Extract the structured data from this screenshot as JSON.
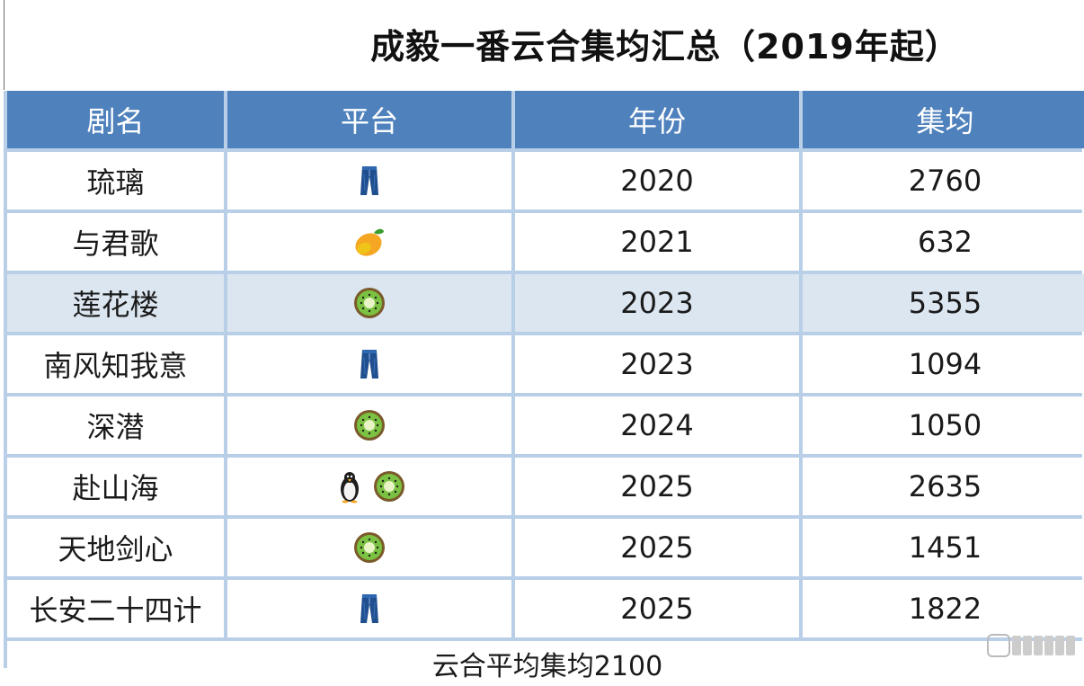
{
  "title": "成毅一番云合集均汇总（2019年起）",
  "table": {
    "headers": [
      "剧名",
      "平台",
      "年份",
      "集均"
    ],
    "rows": [
      {
        "name": "琉璃",
        "platforms": [
          "jeans"
        ],
        "year": "2020",
        "avg": "2760"
      },
      {
        "name": "与君歌",
        "platforms": [
          "mango"
        ],
        "year": "2021",
        "avg": "632"
      },
      {
        "name": "莲花楼",
        "platforms": [
          "kiwi"
        ],
        "year": "2023",
        "avg": "5355",
        "highlight": true
      },
      {
        "name": "南风知我意",
        "platforms": [
          "jeans"
        ],
        "year": "2023",
        "avg": "1094"
      },
      {
        "name": "深潜",
        "platforms": [
          "kiwi"
        ],
        "year": "2024",
        "avg": "1050"
      },
      {
        "name": "赴山海",
        "platforms": [
          "penguin",
          "kiwi"
        ],
        "year": "2025",
        "avg": "2635"
      },
      {
        "name": "天地剑心",
        "platforms": [
          "kiwi"
        ],
        "year": "2025",
        "avg": "1451"
      },
      {
        "name": "长安二十四计",
        "platforms": [
          "jeans"
        ],
        "year": "2025",
        "avg": "1822"
      }
    ]
  },
  "footer": "云合平均集均2100",
  "colors": {
    "header_bg": "#4f81bd",
    "grid_line": "#b9cfe8",
    "highlight_row": "#dce6f1"
  }
}
